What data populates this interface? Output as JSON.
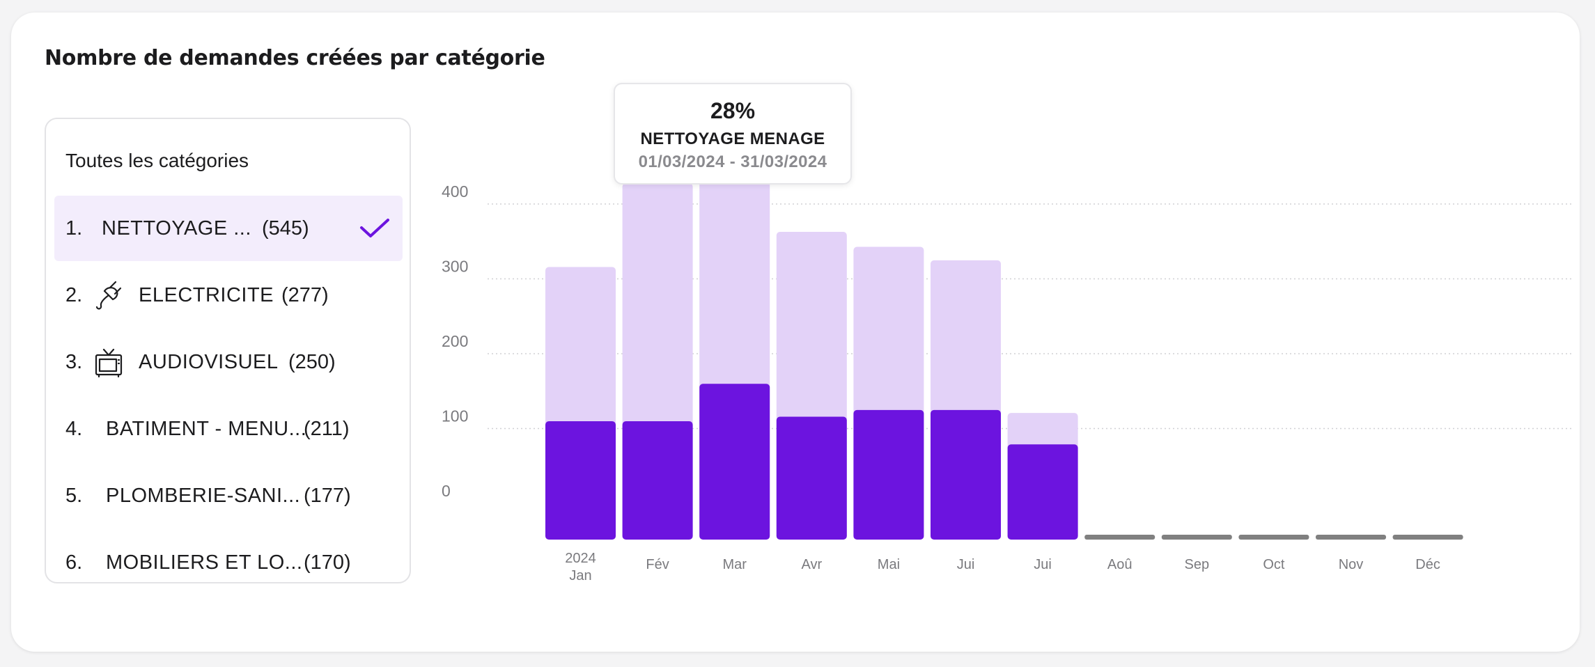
{
  "title": "Nombre de demandes créées par catégorie",
  "list": {
    "header": "Toutes les catégories",
    "items": [
      {
        "rank": "1.",
        "name": "NETTOYAGE ...",
        "count": "(545)",
        "icon": "none",
        "selected": true
      },
      {
        "rank": "2.",
        "name": "ELECTRICITE",
        "count": "(277)",
        "icon": "plug-icon",
        "selected": false
      },
      {
        "rank": "3.",
        "name": "AUDIOVISUEL",
        "count": "(250)",
        "icon": "tv-icon",
        "selected": false
      },
      {
        "rank": "4.",
        "name": "BATIMENT - MENU...",
        "count": "(211)",
        "icon": "none",
        "selected": false
      },
      {
        "rank": "5.",
        "name": "PLOMBERIE-SANI...",
        "count": "(177)",
        "icon": "none",
        "selected": false
      },
      {
        "rank": "6.",
        "name": "MOBILIERS ET LO...",
        "count": "(170)",
        "icon": "none",
        "selected": false
      }
    ]
  },
  "tooltip": {
    "percent": "28%",
    "category": "NETTOYAGE MENAGE",
    "dates": "01/03/2024 - 31/03/2024"
  },
  "colors": {
    "selected_bar": "#6c14df",
    "total_bar": "#e3d2f8",
    "empty_bar": "#808080",
    "accent": "#6c14df",
    "grid": "#d0d0d4",
    "tick_text": "#7a7a7e"
  },
  "chart_data": {
    "type": "bar",
    "stacked": "overlay",
    "year_label": "2024",
    "categories": [
      "Jan",
      "Fév",
      "Mar",
      "Avr",
      "Mai",
      "Jui",
      "Jui",
      "Aoû",
      "Sep",
      "Oct",
      "Nov",
      "Déc"
    ],
    "series": [
      {
        "name": "",
        "values": [
          313,
          425,
          463,
          360,
          340,
          322,
          118,
          0,
          0,
          0,
          0,
          0
        ]
      },
      {
        "name": "NETTOYAGE MENAGE",
        "values": [
          107,
          107,
          157,
          113,
          122,
          122,
          76,
          0,
          0,
          0,
          0,
          0
        ]
      }
    ],
    "yticks": [
      400,
      300,
      200,
      100,
      0
    ],
    "ylim": [
      -50,
      450
    ],
    "grid": true
  }
}
